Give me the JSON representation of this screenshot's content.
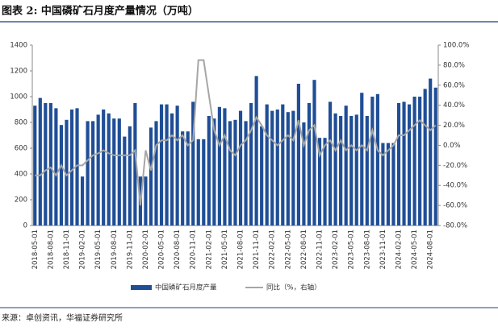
{
  "chart_data": {
    "type": "bar",
    "title": "图表 2:  中国磷矿石月度产量情况（万吨）",
    "source": "来源：卓创资讯，华福证券研究所",
    "categories": [
      "2018-05-01",
      null,
      null,
      "2018-08-01",
      null,
      null,
      "2018-11-01",
      null,
      null,
      "2019-02-01",
      null,
      null,
      "2019-05-01",
      null,
      null,
      "2019-08-01",
      null,
      null,
      "2019-11-01",
      null,
      null,
      "2020-02-01",
      null,
      null,
      "2020-05-01",
      null,
      null,
      "2020-08-01",
      null,
      null,
      "2020-11-01",
      null,
      null,
      "2021-02-01",
      null,
      null,
      "2021-05-01",
      null,
      null,
      "2021-08-01",
      null,
      null,
      "2021-11-01",
      null,
      null,
      "2022-02-01",
      null,
      null,
      "2022-05-01",
      null,
      null,
      "2022-08-01",
      null,
      null,
      "2022-11-01",
      null,
      null,
      "2023-02-01",
      null,
      null,
      "2023-05-01",
      null,
      null,
      "2023-08-01",
      null,
      null,
      "2023-11-01",
      null,
      null,
      "2024-02-01",
      null,
      null,
      "2024-05-01",
      null,
      null,
      "2024-08-01",
      null
    ],
    "series": [
      {
        "name": "中国磷矿石月度产量",
        "type": "bar",
        "color": "#1f4e96",
        "values": [
          930,
          990,
          950,
          950,
          910,
          780,
          820,
          900,
          910,
          380,
          810,
          810,
          860,
          900,
          870,
          830,
          830,
          690,
          770,
          950,
          380,
          380,
          760,
          810,
          940,
          940,
          870,
          930,
          730,
          730,
          960,
          670,
          670,
          850,
          830,
          920,
          910,
          810,
          820,
          890,
          810,
          950,
          1160,
          770,
          940,
          890,
          900,
          940,
          880,
          890,
          1100,
          800,
          950,
          1130,
          680,
          680,
          960,
          870,
          850,
          930,
          850,
          860,
          1030,
          850,
          1000,
          1020,
          640,
          640,
          640,
          950,
          960,
          940,
          1000,
          1000,
          1060,
          1140,
          1070
        ]
      },
      {
        "name": "同比（%，右轴）",
        "type": "line",
        "axis": "y2",
        "color": "#a6a6a6",
        "values": [
          -30,
          -30,
          -25,
          -22,
          -30,
          -20,
          -30,
          -25,
          -20,
          -20,
          -15,
          -10,
          -8,
          -5,
          -8,
          -10,
          -10,
          -10,
          -10,
          -5,
          -60,
          -5,
          -25,
          0,
          5,
          5,
          10,
          5,
          10,
          0,
          5,
          85,
          85,
          50,
          15,
          0,
          10,
          -5,
          -10,
          0,
          5,
          15,
          28,
          20,
          10,
          5,
          0,
          5,
          10,
          5,
          25,
          0,
          15,
          20,
          -10,
          0,
          5,
          -5,
          5,
          -5,
          0,
          -5,
          0,
          -5,
          15,
          -5,
          -10,
          -5,
          0,
          10,
          10,
          15,
          20,
          25,
          20,
          15,
          20
        ]
      }
    ],
    "ylim": [
      0,
      1400
    ],
    "yticks": [
      0,
      200,
      400,
      600,
      800,
      1000,
      1200,
      1400
    ],
    "y2lim": [
      -80,
      100
    ],
    "y2ticks": [
      {
        "value": -80,
        "label": "-80.0%"
      },
      {
        "value": -60,
        "label": "-60.0%"
      },
      {
        "value": -40,
        "label": "-40.0%"
      },
      {
        "value": -20,
        "label": "-20.0%"
      },
      {
        "value": 0,
        "label": "0.0%"
      },
      {
        "value": 20,
        "label": "20.0%"
      },
      {
        "value": 40,
        "label": "40.0%"
      },
      {
        "value": 60,
        "label": "60.0%"
      },
      {
        "value": 80,
        "label": "80.0%"
      },
      {
        "value": 100,
        "label": "100.0%"
      }
    ],
    "grid": false,
    "legend": "bottom"
  }
}
